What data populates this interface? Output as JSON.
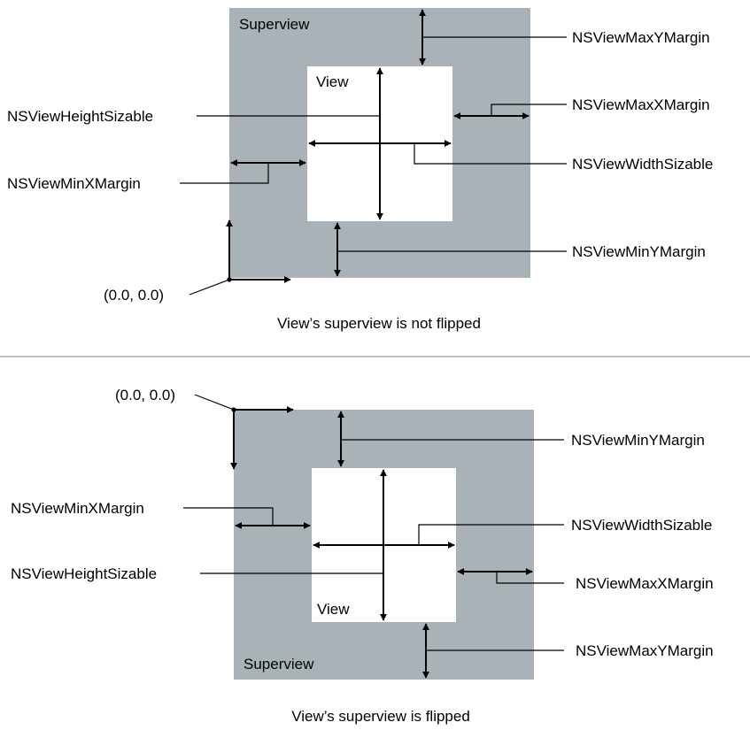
{
  "colors": {
    "superview_fill": "#a9b2b7",
    "view_fill": "#ffffff"
  },
  "top_diagram": {
    "superview_label": "Superview",
    "view_label": "View",
    "origin_label": "(0.0, 0.0)",
    "labels": {
      "max_y_margin": "NSViewMaxYMargin",
      "max_x_margin": "NSViewMaxXMargin",
      "height_sizable": "NSViewHeightSizable",
      "width_sizable": "NSViewWidthSizable",
      "min_x_margin": "NSViewMinXMargin",
      "min_y_margin": "NSViewMinYMargin"
    },
    "caption": "View’s superview is not flipped"
  },
  "bottom_diagram": {
    "superview_label": "Superview",
    "view_label": "View",
    "origin_label": "(0.0, 0.0)",
    "labels": {
      "min_y_margin": "NSViewMinYMargin",
      "min_x_margin": "NSViewMinXMargin",
      "width_sizable": "NSViewWidthSizable",
      "height_sizable": "NSViewHeightSizable",
      "max_x_margin": "NSViewMaxXMargin",
      "max_y_margin": "NSViewMaxYMargin"
    },
    "caption": "View’s superview is flipped"
  }
}
